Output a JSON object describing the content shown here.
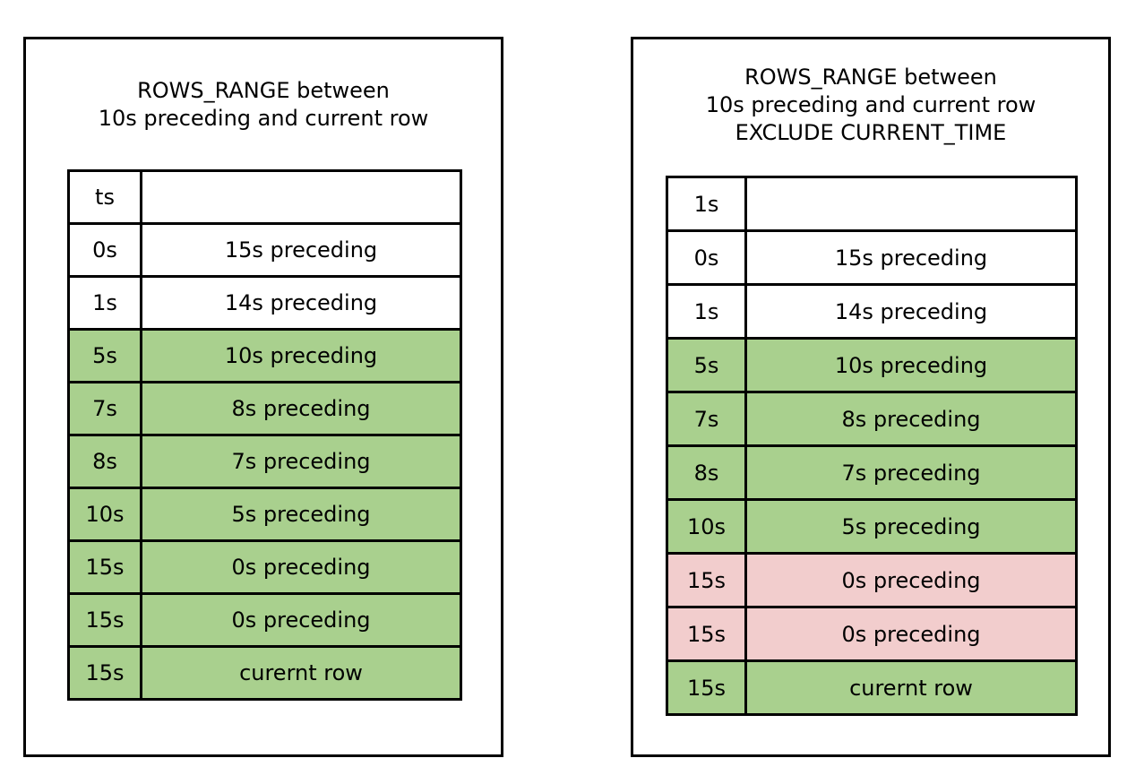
{
  "colors": {
    "included": "#a9d08e",
    "excluded": "#f2cdcd",
    "outside": "#ffffff",
    "border": "#000000"
  },
  "panels": [
    {
      "title_lines": [
        "ROWS_RANGE between",
        "10s preceding and current row"
      ],
      "rows": [
        {
          "ts": "ts",
          "desc": "",
          "state": "white"
        },
        {
          "ts": "0s",
          "desc": "15s preceding",
          "state": "white"
        },
        {
          "ts": "1s",
          "desc": "14s preceding",
          "state": "white"
        },
        {
          "ts": "5s",
          "desc": "10s preceding",
          "state": "green"
        },
        {
          "ts": "7s",
          "desc": "8s preceding",
          "state": "green"
        },
        {
          "ts": "8s",
          "desc": "7s preceding",
          "state": "green"
        },
        {
          "ts": "10s",
          "desc": "5s preceding",
          "state": "green"
        },
        {
          "ts": "15s",
          "desc": "0s preceding",
          "state": "green"
        },
        {
          "ts": "15s",
          "desc": "0s preceding",
          "state": "green"
        },
        {
          "ts": "15s",
          "desc": "curernt row",
          "state": "green"
        }
      ]
    },
    {
      "title_lines": [
        "ROWS_RANGE between",
        "10s preceding and current row",
        "EXCLUDE CURRENT_TIME"
      ],
      "rows": [
        {
          "ts": "1s",
          "desc": "",
          "state": "white"
        },
        {
          "ts": "0s",
          "desc": "15s preceding",
          "state": "white"
        },
        {
          "ts": "1s",
          "desc": "14s preceding",
          "state": "white"
        },
        {
          "ts": "5s",
          "desc": "10s preceding",
          "state": "green"
        },
        {
          "ts": "7s",
          "desc": "8s preceding",
          "state": "green"
        },
        {
          "ts": "8s",
          "desc": "7s preceding",
          "state": "green"
        },
        {
          "ts": "10s",
          "desc": "5s preceding",
          "state": "green"
        },
        {
          "ts": "15s",
          "desc": "0s preceding",
          "state": "pink"
        },
        {
          "ts": "15s",
          "desc": "0s preceding",
          "state": "pink"
        },
        {
          "ts": "15s",
          "desc": "curernt row",
          "state": "green"
        }
      ]
    }
  ]
}
